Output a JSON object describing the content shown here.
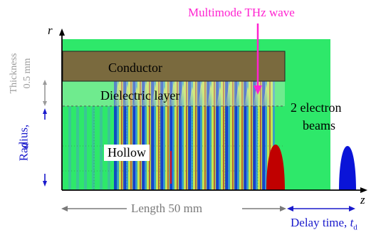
{
  "labels": {
    "thz_wave": "Multimode THz wave",
    "conductor": "Conductor",
    "dielectric": "Dielectric layer",
    "hollow": "Hollow",
    "beams_line1": "2 electron",
    "beams_line2": "beams",
    "length": "Length 50 mm",
    "delay": "Delay time, ",
    "delay_symbol": "t",
    "delay_sub": "d",
    "thickness_line1": "Thickness",
    "thickness_line2": "0.5 mm",
    "radius": "Radius,",
    "radius_symbol": "a",
    "axis_r": "r",
    "axis_z": "z"
  },
  "colors": {
    "field_background": "#2ee86a",
    "conductor_fill": "#7a6a3e",
    "thz_label": "#ff22d0",
    "radius_label": "#1a1acc",
    "thickness_label": "#9a9a9a",
    "length_label": "#7a7a7a",
    "delay_label": "#1a1acc",
    "beam_red": "#c00000",
    "beam_blue": "#0a14d8"
  }
}
